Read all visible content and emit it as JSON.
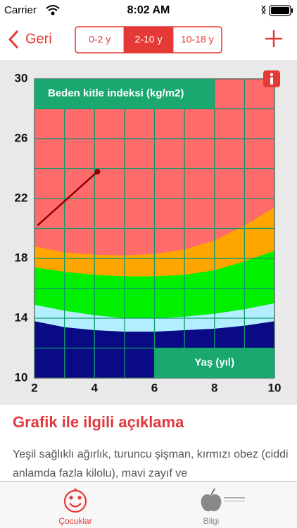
{
  "status_bar": {
    "carrier": "Carrier",
    "time": "8:02 AM"
  },
  "nav": {
    "back": "Geri",
    "segments": [
      "0-2 y",
      "2-10 y",
      "10-18 y"
    ],
    "selected": 1
  },
  "chart_data": {
    "type": "area",
    "ylabel": "Beden kitle indeksi (kg/m2)",
    "xlabel": "Yaş (yıl)",
    "x": [
      2,
      3,
      4,
      5,
      6,
      7,
      8,
      9,
      10
    ],
    "background": "#ff6b6b",
    "series": [
      {
        "color": "#ffa500",
        "values": [
          18.8,
          18.4,
          18.25,
          18.2,
          18.3,
          18.6,
          19.2,
          20.2,
          21.4
        ]
      },
      {
        "color": "#00f000",
        "values": [
          17.4,
          17.1,
          16.9,
          16.8,
          16.8,
          16.9,
          17.2,
          17.8,
          18.5
        ]
      },
      {
        "color": "#b3eeff",
        "values": [
          14.9,
          14.5,
          14.2,
          14.0,
          14.0,
          14.1,
          14.3,
          14.6,
          15.0
        ]
      },
      {
        "color": "#0a0a85",
        "values": [
          13.8,
          13.4,
          13.2,
          13.1,
          13.1,
          13.2,
          13.3,
          13.5,
          13.8
        ]
      }
    ],
    "measurements": {
      "color": "#8b0000",
      "x": [
        2.1,
        4.1
      ],
      "values": [
        20.2,
        23.8
      ]
    },
    "xlim": [
      2,
      10
    ],
    "ylim": [
      10,
      30
    ],
    "xticks": [
      2,
      4,
      6,
      8,
      10
    ],
    "yticks": [
      10,
      14,
      18,
      22,
      26,
      30
    ],
    "xgrid": [
      2,
      3,
      4,
      5,
      6,
      7,
      8,
      9,
      10
    ],
    "ygrid": [
      10,
      12,
      14,
      16,
      18,
      20,
      22,
      24,
      26,
      28,
      30
    ],
    "grid_color": "#0c9a6a"
  },
  "description": {
    "title": "Grafik ile ilgili açıklama",
    "text": "Yeşil sağlıklı ağırlık, turuncu şişman, kırmızı obez (ciddi anlamda fazla kilolu), mavi zayıf ve"
  },
  "tabs": [
    "Çocuklar",
    "Bilgi"
  ],
  "active_tab": 0
}
